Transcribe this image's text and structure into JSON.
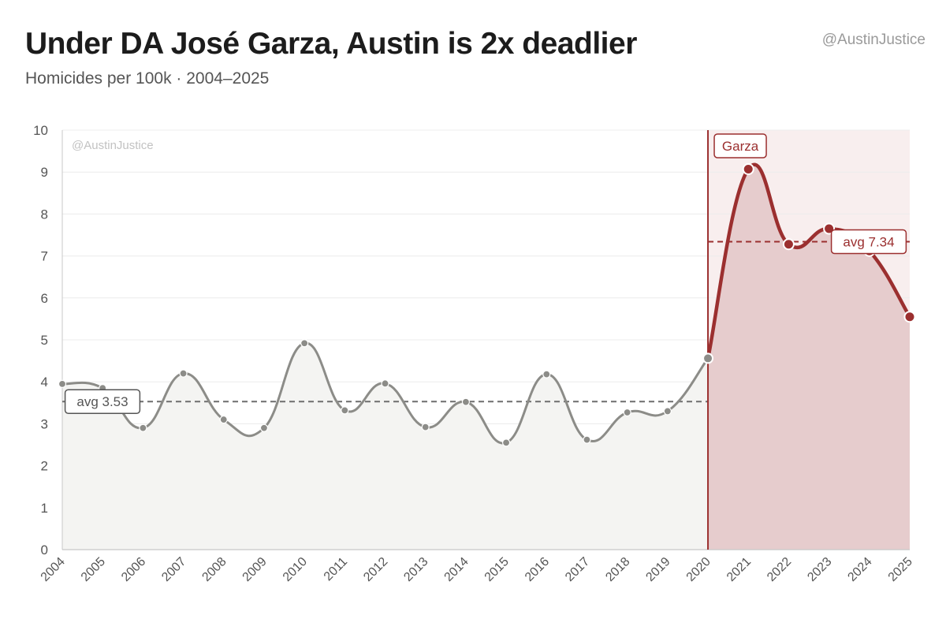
{
  "header": {
    "title": "Under DA José Garza, Austin is 2x deadlier",
    "subtitle": "Homicides per 100k · 2004–2025",
    "handle": "@AustinJustice"
  },
  "chart_data": {
    "type": "line",
    "title": "Under DA José Garza, Austin is 2x deadlier",
    "subtitle": "Homicides per 100k · 2004–2025",
    "watermark": "@AustinJustice",
    "categories": [
      "2004",
      "2005",
      "2006",
      "2007",
      "2008",
      "2009",
      "2010",
      "2011",
      "2012",
      "2013",
      "2014",
      "2015",
      "2016",
      "2017",
      "2018",
      "2019",
      "2020",
      "2021",
      "2022",
      "2023",
      "2024",
      "2025"
    ],
    "series": [
      {
        "values": [
          3.95,
          3.85,
          2.9,
          4.2,
          3.1,
          2.9,
          4.92,
          3.32,
          3.96,
          2.92,
          3.52,
          2.55,
          4.18,
          2.62,
          3.27,
          3.3,
          4.56,
          9.07,
          7.28,
          7.65,
          7.12,
          5.55
        ]
      }
    ],
    "yticks": [
      "0",
      "1",
      "2",
      "3",
      "4",
      "5",
      "6",
      "7",
      "8",
      "9",
      "10"
    ],
    "ylim": [
      0,
      10
    ],
    "grid": true,
    "marker_year": "2020",
    "marker_label": "Garza",
    "averages": [
      {
        "label": "avg 3.53",
        "value": 3.53,
        "from": "2004",
        "to": "2020"
      },
      {
        "label": "avg 7.34",
        "value": 7.34,
        "from": "2020",
        "to": "2025"
      }
    ],
    "colors": {
      "pre": "#8c8c88",
      "pre_fill": "#f4f4f2",
      "post": "#9b2f2f",
      "post_fill": "#e6cccd",
      "post_band": "#f8eeee",
      "grid": "#ececec",
      "axis": "#c8c8c8",
      "tick": "#555555"
    }
  }
}
